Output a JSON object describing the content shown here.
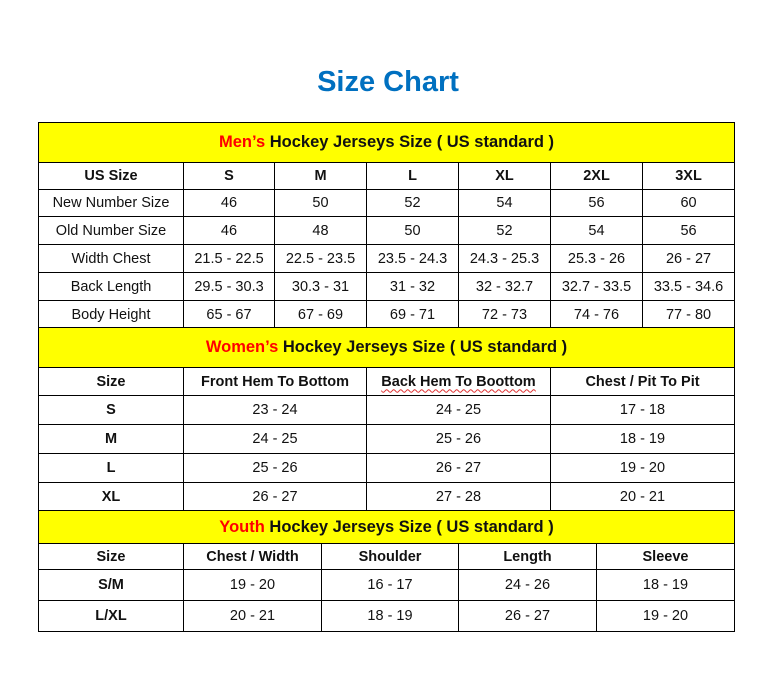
{
  "title": "Size Chart",
  "colors": {
    "title": "#0070c0",
    "header_bg": "#ffff00",
    "accent_red": "#ff0000"
  },
  "mens": {
    "header_prefix": "Men’s",
    "header_rest": " Hockey Jerseys Size ( US standard )",
    "columns": [
      "US Size",
      "S",
      "M",
      "L",
      "XL",
      "2XL",
      "3XL"
    ],
    "rows": [
      [
        "New Number Size",
        "46",
        "50",
        "52",
        "54",
        "56",
        "60"
      ],
      [
        "Old Number Size",
        "46",
        "48",
        "50",
        "52",
        "54",
        "56"
      ],
      [
        "Width Chest",
        "21.5 - 22.5",
        "22.5 - 23.5",
        "23.5 - 24.3",
        "24.3 - 25.3",
        "25.3 - 26",
        "26 - 27"
      ],
      [
        "Back Length",
        "29.5 - 30.3",
        "30.3 - 31",
        "31 - 32",
        "32 - 32.7",
        "32.7 - 33.5",
        "33.5 - 34.6"
      ],
      [
        "Body Height",
        "65 - 67",
        "67 - 69",
        "69 - 71",
        "72 - 73",
        "74 - 76",
        "77 - 80"
      ]
    ]
  },
  "womens": {
    "header_prefix": "Women’s",
    "header_rest": " Hockey Jerseys Size ( US standard )",
    "columns": [
      "Size",
      "Front Hem To Bottom",
      "Back Hem To Boottom",
      "Chest / Pit To Pit"
    ],
    "rows": [
      [
        "S",
        "23 - 24",
        "24 - 25",
        "17 - 18"
      ],
      [
        "M",
        "24 - 25",
        "25 - 26",
        "18 - 19"
      ],
      [
        "L",
        "25 - 26",
        "26 - 27",
        "19 - 20"
      ],
      [
        "XL",
        "26 - 27",
        "27 - 28",
        "20 - 21"
      ]
    ]
  },
  "youth": {
    "header_prefix": "Youth",
    "header_rest": " Hockey Jerseys Size ( US standard )",
    "columns": [
      "Size",
      "Chest / Width",
      "Shoulder",
      "Length",
      "Sleeve"
    ],
    "rows": [
      [
        "S/M",
        "19 - 20",
        "16 - 17",
        "24 - 26",
        "18 - 19"
      ],
      [
        "L/XL",
        "20 - 21",
        "18 - 19",
        "26 - 27",
        "19 - 20"
      ]
    ]
  }
}
